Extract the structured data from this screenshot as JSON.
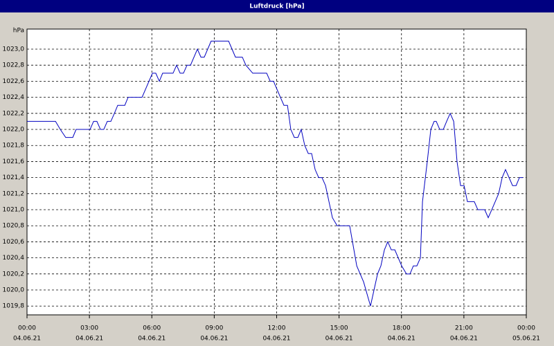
{
  "chart_data": {
    "type": "line",
    "title": "Luftdruck [hPa]",
    "y_label": "hPa",
    "x": [
      0,
      1.37,
      1.6,
      1.86,
      2.2,
      2.36,
      3.03,
      3.2,
      3.36,
      3.53,
      3.69,
      3.86,
      4.03,
      4.2,
      4.36,
      4.7,
      4.86,
      5.53,
      6.03,
      6.19,
      6.36,
      6.52,
      7.02,
      7.19,
      7.36,
      7.52,
      7.69,
      7.86,
      8.19,
      8.36,
      8.52,
      8.85,
      9.69,
      10.02,
      10.35,
      10.52,
      10.85,
      11.52,
      11.69,
      11.85,
      12.18,
      12.35,
      12.52,
      12.68,
      12.85,
      13.02,
      13.18,
      13.35,
      13.52,
      13.68,
      13.85,
      14.02,
      14.18,
      14.35,
      14.68,
      14.91,
      15.51,
      15.85,
      16.18,
      16.51,
      16.85,
      17.01,
      17.18,
      17.34,
      17.51,
      17.68,
      18.01,
      18.24,
      18.41,
      18.57,
      18.74,
      18.91,
      19.01,
      19.24,
      19.41,
      19.57,
      19.67,
      19.84,
      20.01,
      20.17,
      20.34,
      20.51,
      20.67,
      20.84,
      21.01,
      21.17,
      21.5,
      21.67,
      22.0,
      22.17,
      22.34,
      22.67,
      22.84,
      23.0,
      23.17,
      23.34,
      23.51,
      23.67,
      23.84
    ],
    "series": [
      {
        "name": "Luftdruck",
        "color": "#0000c0",
        "values": [
          1022.1,
          1022.1,
          1022.0,
          1021.9,
          1021.9,
          1022.0,
          1022.0,
          1022.1,
          1022.1,
          1022.0,
          1022.0,
          1022.1,
          1022.1,
          1022.2,
          1022.3,
          1022.3,
          1022.4,
          1022.4,
          1022.7,
          1022.7,
          1022.6,
          1022.7,
          1022.7,
          1022.8,
          1022.7,
          1022.7,
          1022.8,
          1022.8,
          1023.0,
          1022.9,
          1022.9,
          1023.1,
          1023.1,
          1022.9,
          1022.9,
          1022.8,
          1022.7,
          1022.7,
          1022.6,
          1022.6,
          1022.4,
          1022.3,
          1022.3,
          1022.0,
          1021.9,
          1021.9,
          1022.0,
          1021.8,
          1021.7,
          1021.7,
          1021.5,
          1021.4,
          1021.4,
          1021.3,
          1020.9,
          1020.8,
          1020.8,
          1020.3,
          1020.1,
          1019.8,
          1020.2,
          1020.3,
          1020.5,
          1020.6,
          1020.5,
          1020.5,
          1020.3,
          1020.2,
          1020.2,
          1020.3,
          1020.3,
          1020.4,
          1021.1,
          1021.6,
          1022.0,
          1022.1,
          1022.1,
          1022.0,
          1022.0,
          1022.1,
          1022.2,
          1022.1,
          1021.6,
          1021.3,
          1021.3,
          1021.1,
          1021.1,
          1021.0,
          1021.0,
          1020.9,
          1021.0,
          1021.2,
          1021.4,
          1021.5,
          1021.4,
          1021.3,
          1021.3,
          1021.4,
          1021.4
        ]
      }
    ],
    "xlim": [
      0,
      24
    ],
    "xticks": [
      {
        "value": 0,
        "label": "00:00"
      },
      {
        "value": 3,
        "label": "03:00"
      },
      {
        "value": 6,
        "label": "06:00"
      },
      {
        "value": 9,
        "label": "09:00"
      },
      {
        "value": 12,
        "label": "12:00"
      },
      {
        "value": 15,
        "label": "15:00"
      },
      {
        "value": 18,
        "label": "18:00"
      },
      {
        "value": 21,
        "label": "21:00"
      },
      {
        "value": 24,
        "label": "00:00"
      }
    ],
    "xtick_dates": [
      "04.06.21",
      "04.06.21",
      "04.06.21",
      "04.06.21",
      "04.06.21",
      "04.06.21",
      "04.06.21",
      "04.06.21",
      "05.06.21"
    ],
    "ylim": [
      1019.69,
      1023.25
    ],
    "yticks": [
      {
        "value": 1019.8,
        "label": "1019,8"
      },
      {
        "value": 1020.0,
        "label": "1020,0"
      },
      {
        "value": 1020.2,
        "label": "1020,2"
      },
      {
        "value": 1020.4,
        "label": "1020,4"
      },
      {
        "value": 1020.6,
        "label": "1020,6"
      },
      {
        "value": 1020.8,
        "label": "1020,8"
      },
      {
        "value": 1021.0,
        "label": "1021,0"
      },
      {
        "value": 1021.2,
        "label": "1021,2"
      },
      {
        "value": 1021.4,
        "label": "1021,4"
      },
      {
        "value": 1021.6,
        "label": "1021,6"
      },
      {
        "value": 1021.8,
        "label": "1021,8"
      },
      {
        "value": 1022.0,
        "label": "1022,0"
      },
      {
        "value": 1022.2,
        "label": "1022,2"
      },
      {
        "value": 1022.4,
        "label": "1022,4"
      },
      {
        "value": 1022.6,
        "label": "1022,6"
      },
      {
        "value": 1022.8,
        "label": "1022,8"
      },
      {
        "value": 1023.0,
        "label": "1023,0"
      }
    ],
    "grid": true
  }
}
